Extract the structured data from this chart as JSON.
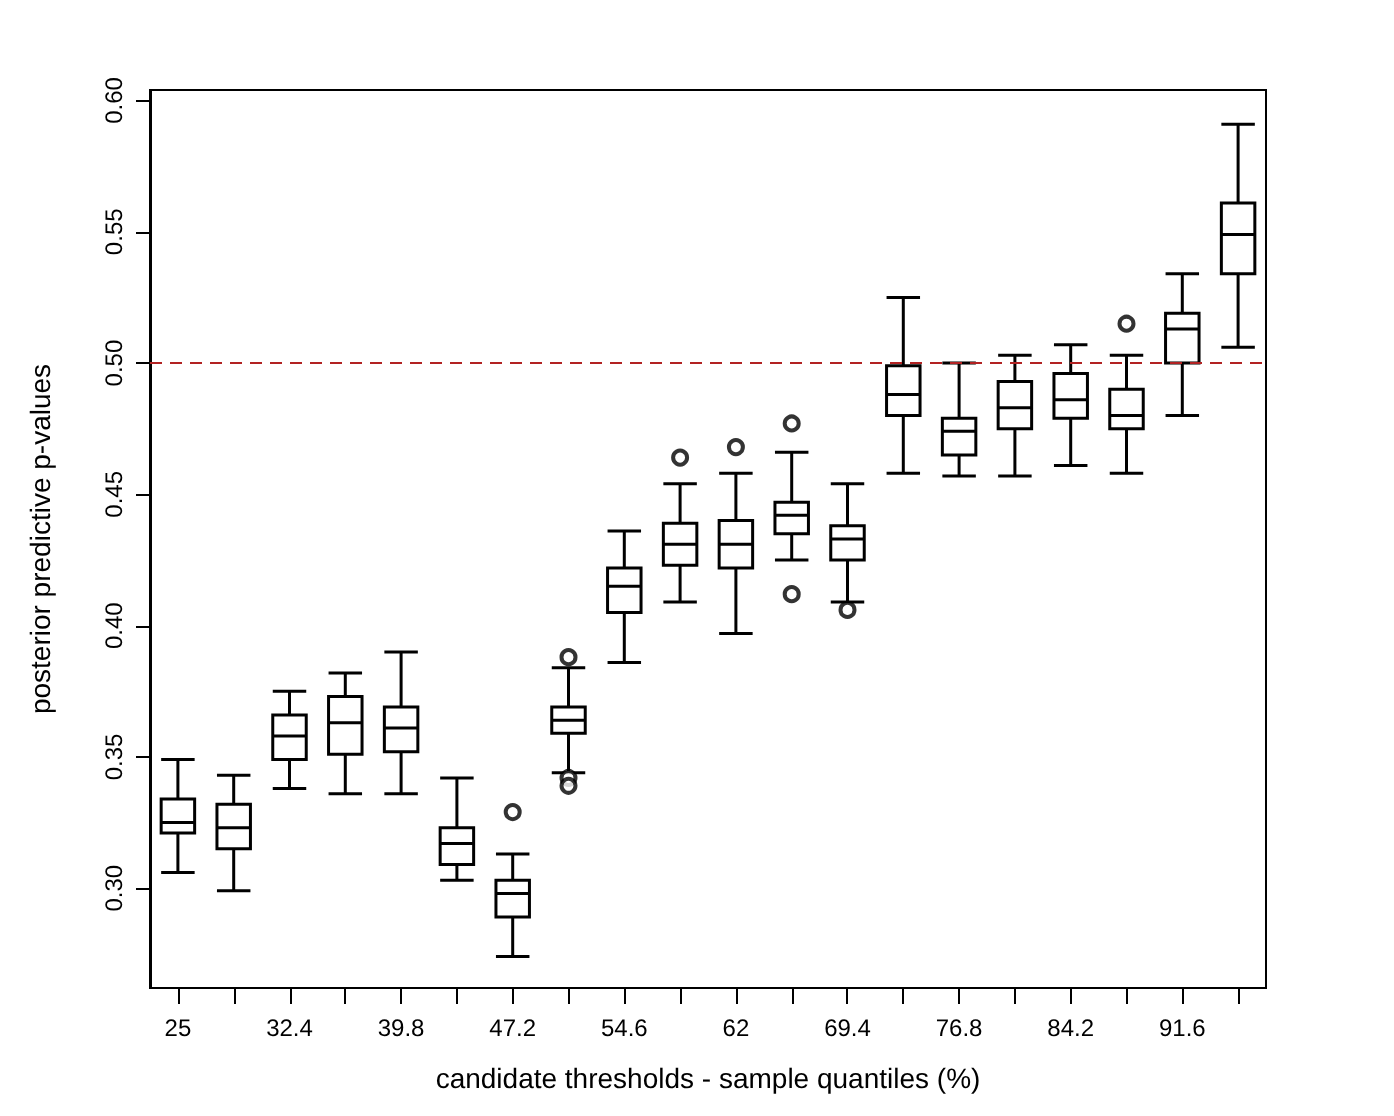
{
  "chart_data": {
    "type": "box",
    "xlabel": "candidate thresholds - sample quantiles (%)",
    "ylabel": "posterior predictive p-values",
    "categories": [
      "25",
      null,
      "32.4",
      null,
      "39.8",
      null,
      "47.2",
      null,
      "54.6",
      null,
      "62",
      null,
      "69.4",
      null,
      "76.8",
      null,
      "84.2",
      null,
      "91.6",
      null
    ],
    "boxes": [
      {
        "low": 0.306,
        "q1": 0.321,
        "median": 0.325,
        "q3": 0.334,
        "high": 0.349
      },
      {
        "low": 0.299,
        "q1": 0.315,
        "median": 0.323,
        "q3": 0.332,
        "high": 0.343
      },
      {
        "low": 0.338,
        "q1": 0.349,
        "median": 0.358,
        "q3": 0.366,
        "high": 0.375
      },
      {
        "low": 0.336,
        "q1": 0.351,
        "median": 0.363,
        "q3": 0.373,
        "high": 0.382
      },
      {
        "low": 0.336,
        "q1": 0.352,
        "median": 0.361,
        "q3": 0.369,
        "high": 0.39
      },
      {
        "low": 0.303,
        "q1": 0.309,
        "median": 0.317,
        "q3": 0.323,
        "high": 0.342
      },
      {
        "low": 0.274,
        "q1": 0.289,
        "median": 0.298,
        "q3": 0.303,
        "high": 0.313,
        "outliers": [
          0.329
        ]
      },
      {
        "low": 0.344,
        "q1": 0.359,
        "median": 0.364,
        "q3": 0.369,
        "high": 0.384,
        "outliers": [
          0.388,
          0.342,
          0.339
        ]
      },
      {
        "low": 0.386,
        "q1": 0.405,
        "median": 0.415,
        "q3": 0.422,
        "high": 0.436
      },
      {
        "low": 0.409,
        "q1": 0.423,
        "median": 0.431,
        "q3": 0.439,
        "high": 0.454,
        "outliers": [
          0.464
        ]
      },
      {
        "low": 0.397,
        "q1": 0.422,
        "median": 0.431,
        "q3": 0.44,
        "high": 0.458,
        "outliers": [
          0.468
        ]
      },
      {
        "low": 0.425,
        "q1": 0.435,
        "median": 0.442,
        "q3": 0.447,
        "high": 0.466,
        "outliers": [
          0.477,
          0.412
        ]
      },
      {
        "low": 0.409,
        "q1": 0.425,
        "median": 0.433,
        "q3": 0.438,
        "high": 0.454,
        "outliers": [
          0.406
        ]
      },
      {
        "low": 0.458,
        "q1": 0.48,
        "median": 0.488,
        "q3": 0.499,
        "high": 0.525
      },
      {
        "low": 0.457,
        "q1": 0.465,
        "median": 0.474,
        "q3": 0.479,
        "high": 0.5
      },
      {
        "low": 0.457,
        "q1": 0.475,
        "median": 0.483,
        "q3": 0.493,
        "high": 0.503
      },
      {
        "low": 0.461,
        "q1": 0.479,
        "median": 0.486,
        "q3": 0.496,
        "high": 0.507
      },
      {
        "low": 0.458,
        "q1": 0.475,
        "median": 0.48,
        "q3": 0.49,
        "high": 0.503,
        "outliers": [
          0.515
        ]
      },
      {
        "low": 0.48,
        "q1": 0.5,
        "median": 0.513,
        "q3": 0.519,
        "high": 0.534
      },
      {
        "low": 0.506,
        "q1": 0.534,
        "median": 0.549,
        "q3": 0.561,
        "high": 0.591
      }
    ],
    "ylim": [
      0.262,
      0.604
    ],
    "yticks": [
      {
        "value": 0.3,
        "label": "0.30"
      },
      {
        "value": 0.35,
        "label": "0.35"
      },
      {
        "value": 0.4,
        "label": "0.40"
      },
      {
        "value": 0.45,
        "label": "0.45"
      },
      {
        "value": 0.5,
        "label": "0.50"
      },
      {
        "value": 0.55,
        "label": "0.55"
      },
      {
        "value": 0.6,
        "label": "0.60"
      }
    ],
    "ref_lines": [
      {
        "axis": "y",
        "value": 0.5,
        "color": "#b22222",
        "line_style": "dashed"
      }
    ],
    "grid": false
  }
}
